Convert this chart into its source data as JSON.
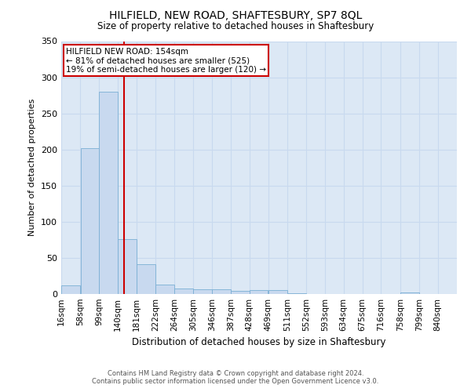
{
  "title": "HILFIELD, NEW ROAD, SHAFTESBURY, SP7 8QL",
  "subtitle": "Size of property relative to detached houses in Shaftesbury",
  "xlabel": "Distribution of detached houses by size in Shaftesbury",
  "ylabel": "Number of detached properties",
  "footer1": "Contains HM Land Registry data © Crown copyright and database right 2024.",
  "footer2": "Contains public sector information licensed under the Open Government Licence v3.0.",
  "annotation_line1": "HILFIELD NEW ROAD: 154sqm",
  "annotation_line2": "← 81% of detached houses are smaller (525)",
  "annotation_line3": "19% of semi-detached houses are larger (120) →",
  "bar_color": "#c8d9ef",
  "bar_edge_color": "#7aafd4",
  "grid_color": "#c8d9ef",
  "background_color": "#dce8f5",
  "annotation_box_color": "#ffffff",
  "annotation_box_edge_color": "#cc0000",
  "vline_color": "#cc0000",
  "bins": [
    "16sqm",
    "58sqm",
    "99sqm",
    "140sqm",
    "181sqm",
    "222sqm",
    "264sqm",
    "305sqm",
    "346sqm",
    "387sqm",
    "428sqm",
    "469sqm",
    "511sqm",
    "552sqm",
    "593sqm",
    "634sqm",
    "675sqm",
    "716sqm",
    "758sqm",
    "799sqm",
    "840sqm"
  ],
  "bin_edges": [
    16,
    58,
    99,
    140,
    181,
    222,
    264,
    305,
    346,
    387,
    428,
    469,
    511,
    552,
    593,
    634,
    675,
    716,
    758,
    799,
    840
  ],
  "counts": [
    12,
    202,
    280,
    76,
    41,
    13,
    8,
    6,
    6,
    4,
    5,
    5,
    1,
    0,
    0,
    0,
    0,
    0,
    2,
    0
  ],
  "vline_x": 154,
  "ylim": [
    0,
    350
  ],
  "yticks": [
    0,
    50,
    100,
    150,
    200,
    250,
    300,
    350
  ],
  "title_fontsize": 10,
  "subtitle_fontsize": 8.5,
  "ylabel_fontsize": 8,
  "xlabel_fontsize": 8.5,
  "tick_fontsize": 7.5,
  "annotation_fontsize": 7.5,
  "footer_fontsize": 6
}
